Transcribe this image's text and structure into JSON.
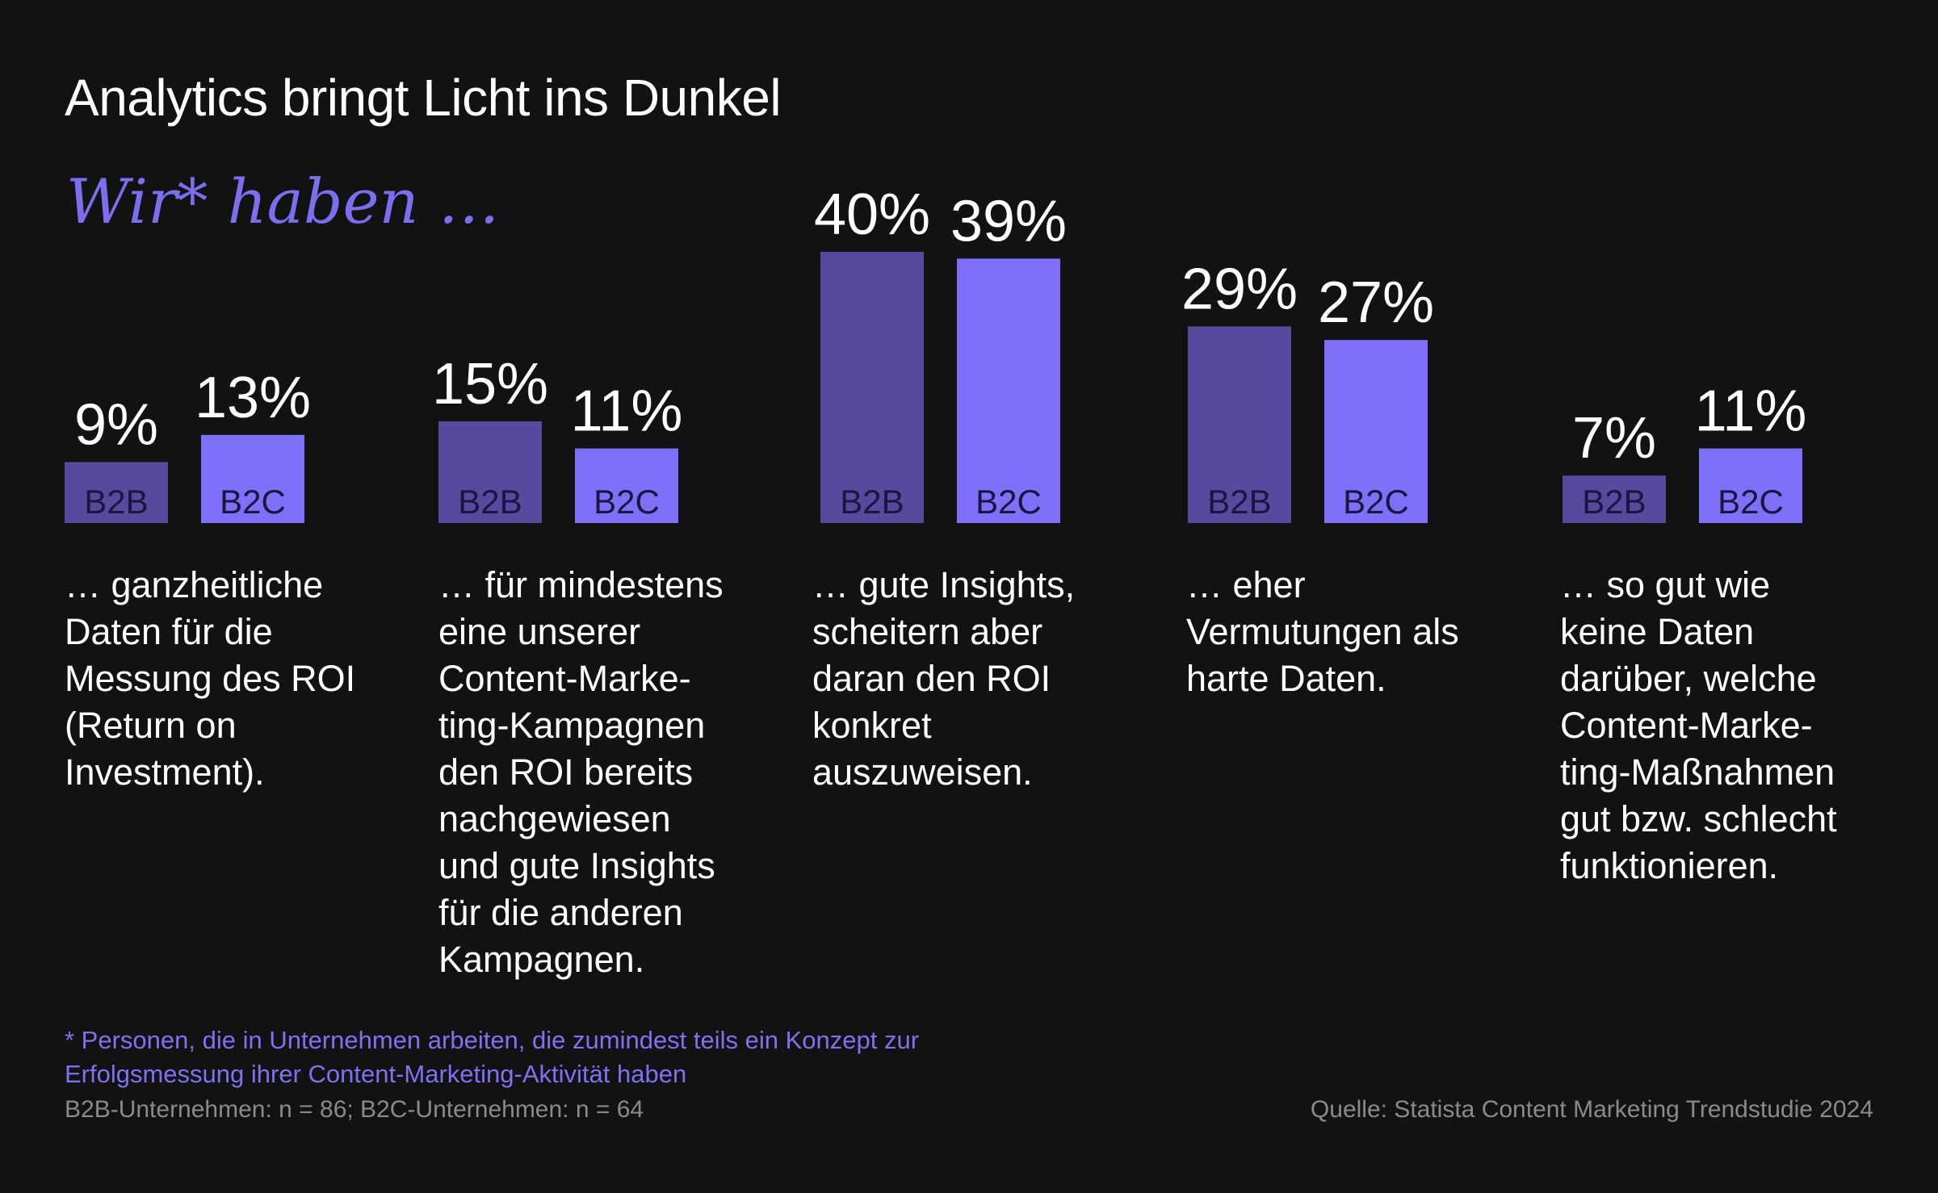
{
  "title": "Analytics bringt Licht ins Dunkel",
  "subtitle": "Wir* haben …",
  "colors": {
    "b2b": "#554a9e",
    "b2c": "#7e70f8",
    "background": "#121212",
    "accent": "#7b6ff0"
  },
  "chart_data": {
    "type": "bar",
    "series": [
      {
        "name": "B2B",
        "values": [
          9,
          15,
          40,
          29,
          7
        ]
      },
      {
        "name": "B2C",
        "values": [
          13,
          11,
          39,
          27,
          11
        ]
      }
    ],
    "value_labels": {
      "B2B": [
        "9%",
        "15%",
        "40%",
        "29%",
        "7%"
      ],
      "B2C": [
        "13%",
        "11%",
        "39%",
        "27%",
        "11%"
      ]
    },
    "categories": [
      "… ganzheitliche\nDaten für die\nMessung des ROI\n(Return on\nInvestment).",
      "… für mindestens\neine unserer\nContent-Marke-\nting-Kampagnen\nden ROI bereits\nnachgewiesen\nund gute Insights\nfür die anderen\nKampagnen.",
      "… gute Insights,\nscheitern aber\ndaran den ROI\nkonkret\nauszuweisen.",
      "… eher\nVermutungen als\nharte Daten.",
      "… so gut wie\nkeine Daten\ndarüber, welche\nContent-Marke-\nting-Maßnahmen\ngut bzw. schlecht\nfunktionieren."
    ],
    "unit": "%",
    "grid": false,
    "legend": "none"
  },
  "footnote": "* Personen, die in Unternehmen arbeiten, die zumindest teils ein Konzept zur\nErfolgsmessung ihrer Content-Marketing-Aktivität haben",
  "sample_note": "B2B-Unternehmen: n = 86; B2C-Unternehmen: n = 64",
  "source": "Quelle: Statista Content Marketing Trendstudie 2024"
}
